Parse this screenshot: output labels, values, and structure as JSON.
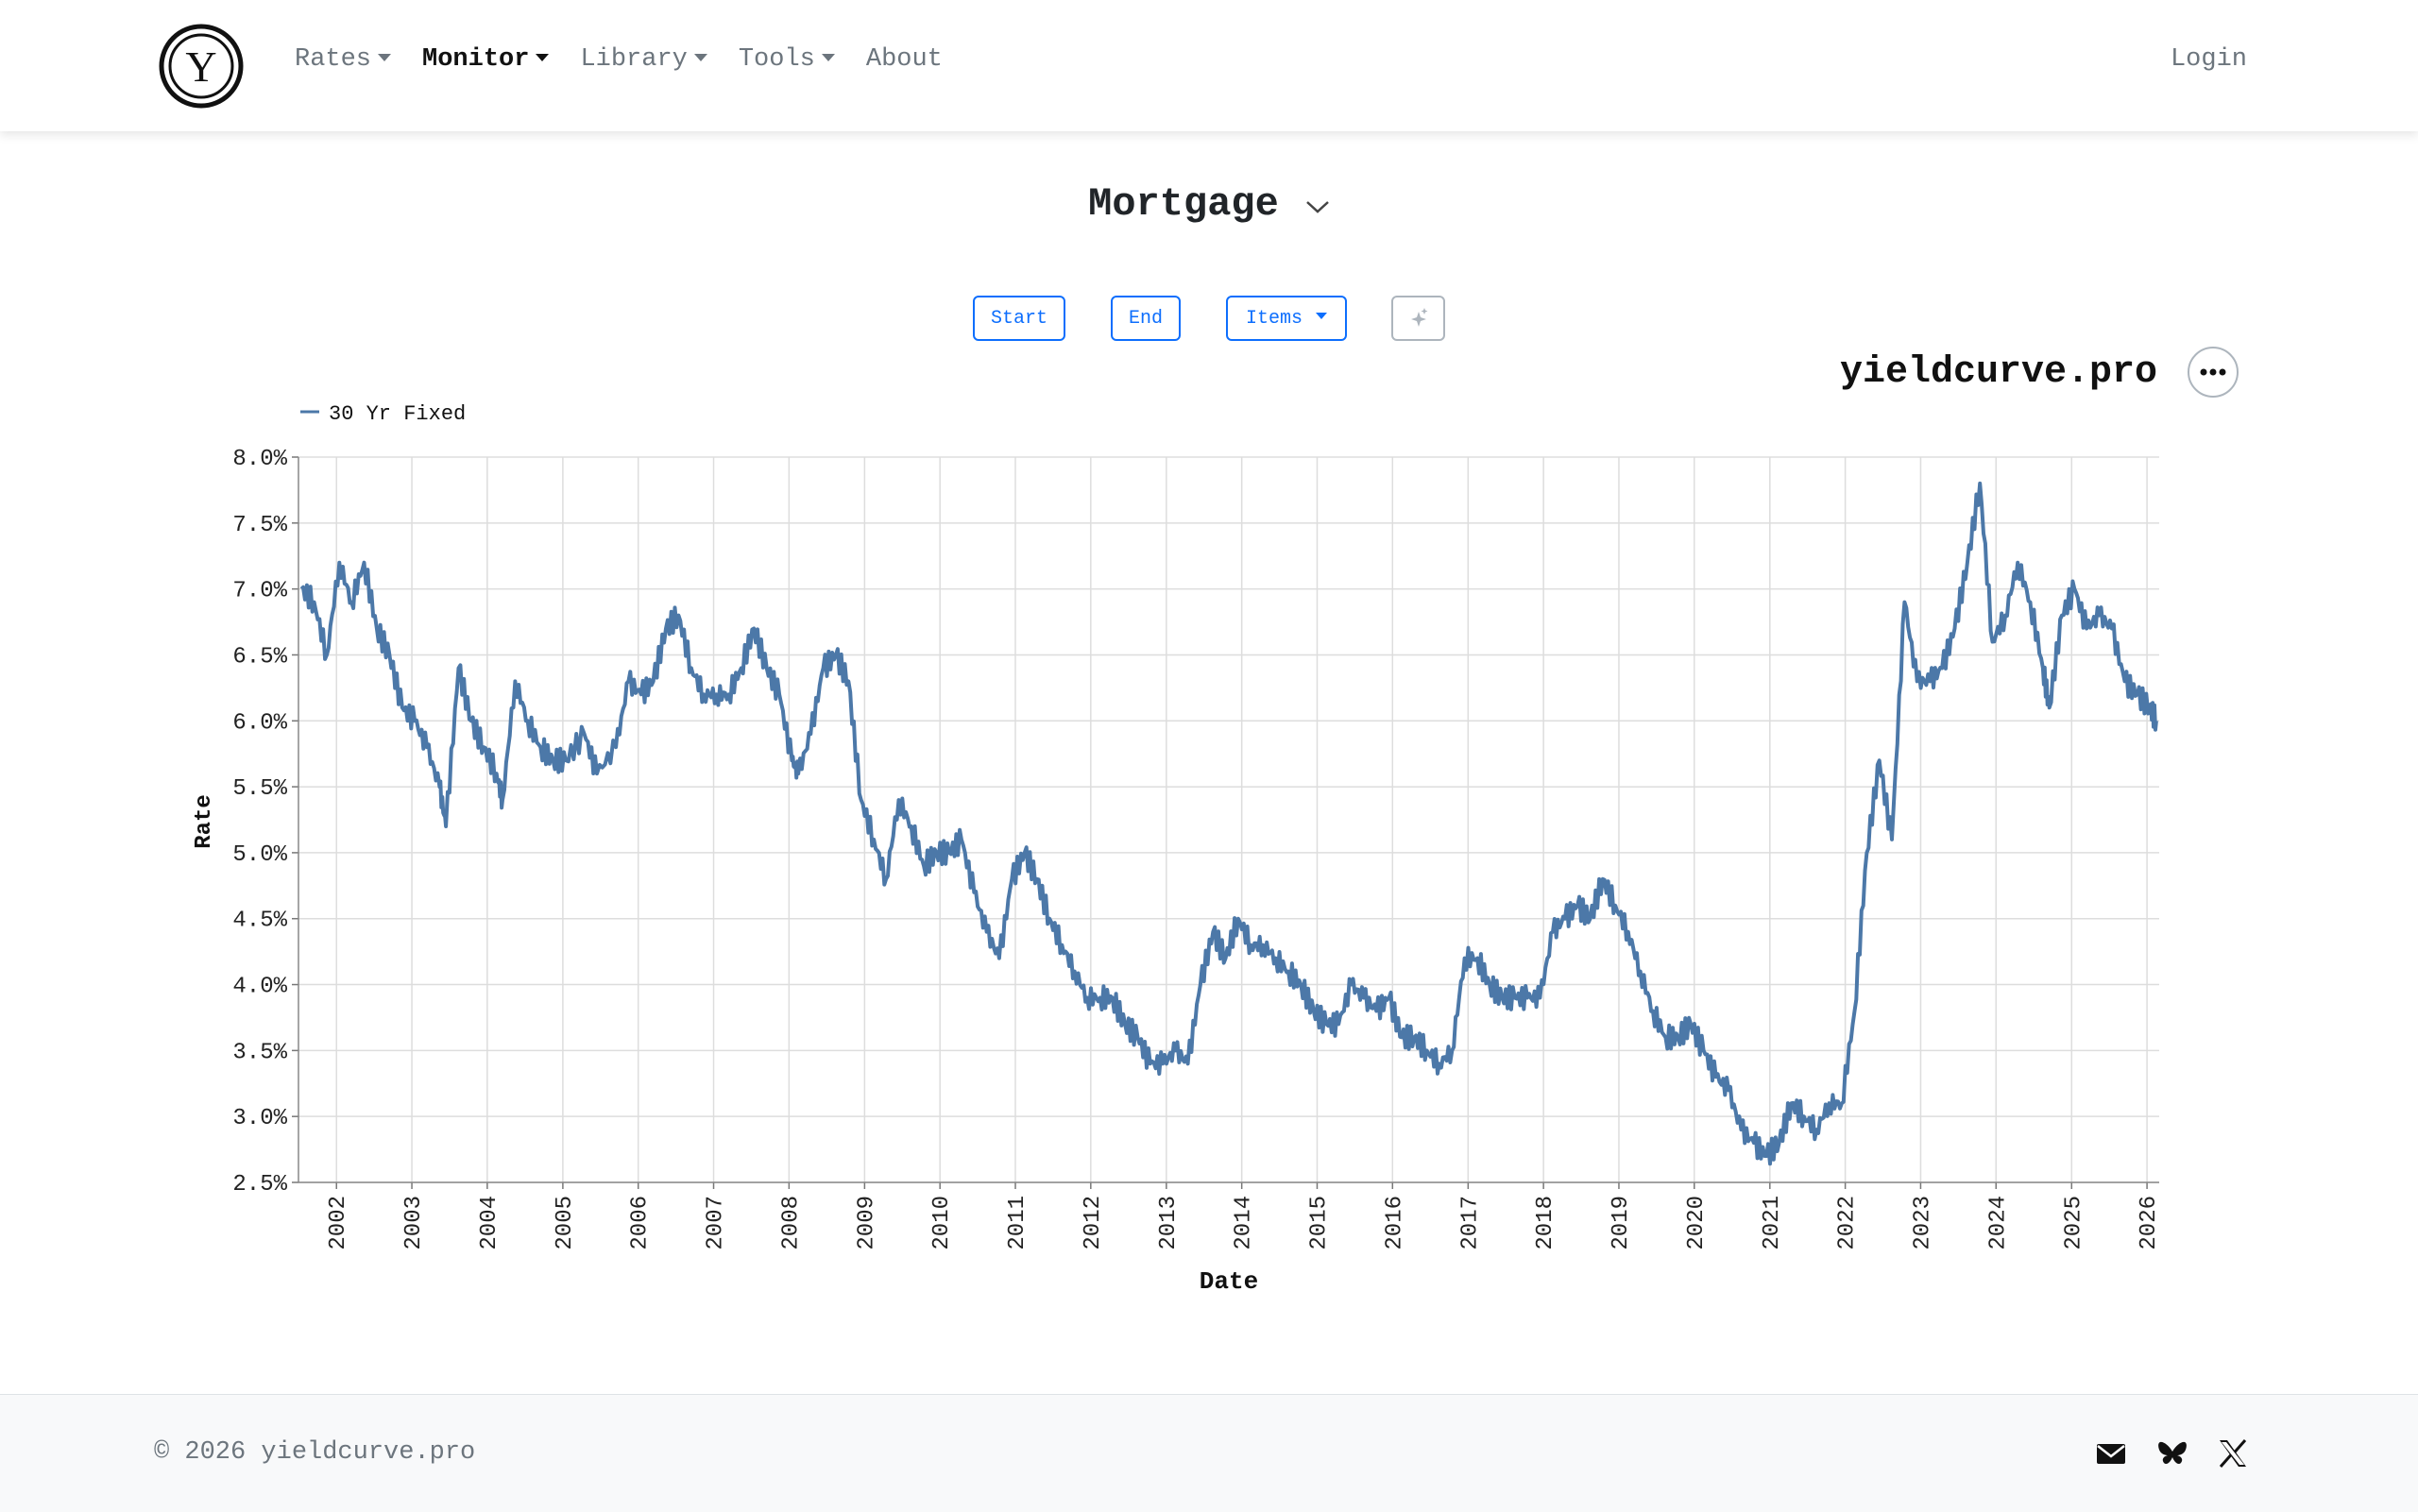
{
  "nav": {
    "items": [
      {
        "label": "Rates",
        "dropdown": true,
        "active": false
      },
      {
        "label": "Monitor",
        "dropdown": true,
        "active": true
      },
      {
        "label": "Library",
        "dropdown": true,
        "active": false
      },
      {
        "label": "Tools",
        "dropdown": true,
        "active": false
      },
      {
        "label": "About",
        "dropdown": false,
        "active": false
      }
    ],
    "login_label": "Login",
    "logo_letter": "Y"
  },
  "page": {
    "title": "Mortgage"
  },
  "controls": {
    "start_label": "Start",
    "end_label": "End",
    "items_label": "Items"
  },
  "brand": "yieldcurve.pro",
  "footer": {
    "copyright": "© 2026 yieldcurve.pro",
    "icons": [
      "envelope-icon",
      "bluesky-icon",
      "x-icon"
    ]
  },
  "colors": {
    "series": "#4c78a8",
    "accent": "#0d6efd",
    "grid": "#dddddd"
  },
  "chart_data": {
    "type": "line",
    "title": "",
    "xlabel": "Date",
    "ylabel": "Rate",
    "xlim": [
      "2001-07-01",
      "2026-03-01"
    ],
    "ylim": [
      2.5,
      8.0
    ],
    "ytick_step": 0.5,
    "ytick_format": "0.0%",
    "xticks": [
      "2002",
      "2003",
      "2004",
      "2005",
      "2006",
      "2007",
      "2008",
      "2009",
      "2010",
      "2011",
      "2012",
      "2013",
      "2014",
      "2015",
      "2016",
      "2017",
      "2018",
      "2019",
      "2020",
      "2021",
      "2022",
      "2023",
      "2024",
      "2025",
      "2026"
    ],
    "grid": true,
    "legend_position": "top-left",
    "series": [
      {
        "name": "30 Yr Fixed",
        "points": [
          [
            "2001-07",
            7.0
          ],
          [
            "2001-09",
            6.9
          ],
          [
            "2001-11",
            6.5
          ],
          [
            "2002-01",
            7.2
          ],
          [
            "2002-03",
            6.9
          ],
          [
            "2002-05",
            7.2
          ],
          [
            "2002-07",
            6.7
          ],
          [
            "2002-09",
            6.5
          ],
          [
            "2002-11",
            6.1
          ],
          [
            "2003-01",
            6.0
          ],
          [
            "2003-03",
            5.8
          ],
          [
            "2003-05",
            5.5
          ],
          [
            "2003-06",
            5.2
          ],
          [
            "2003-08",
            6.4
          ],
          [
            "2003-10",
            6.0
          ],
          [
            "2003-12",
            5.8
          ],
          [
            "2004-02",
            5.6
          ],
          [
            "2004-03",
            5.4
          ],
          [
            "2004-05",
            6.3
          ],
          [
            "2004-07",
            6.0
          ],
          [
            "2004-09",
            5.8
          ],
          [
            "2004-11",
            5.7
          ],
          [
            "2005-01",
            5.7
          ],
          [
            "2005-04",
            5.9
          ],
          [
            "2005-06",
            5.6
          ],
          [
            "2005-09",
            5.8
          ],
          [
            "2005-11",
            6.3
          ],
          [
            "2006-01",
            6.2
          ],
          [
            "2006-03",
            6.3
          ],
          [
            "2006-05",
            6.7
          ],
          [
            "2006-07",
            6.8
          ],
          [
            "2006-09",
            6.4
          ],
          [
            "2006-11",
            6.2
          ],
          [
            "2007-01",
            6.2
          ],
          [
            "2007-03",
            6.2
          ],
          [
            "2007-05",
            6.4
          ],
          [
            "2007-07",
            6.7
          ],
          [
            "2007-09",
            6.4
          ],
          [
            "2007-11",
            6.2
          ],
          [
            "2008-01",
            5.7
          ],
          [
            "2008-02",
            5.6
          ],
          [
            "2008-04",
            5.9
          ],
          [
            "2008-06",
            6.4
          ],
          [
            "2008-08",
            6.5
          ],
          [
            "2008-10",
            6.3
          ],
          [
            "2008-12",
            5.4
          ],
          [
            "2009-02",
            5.1
          ],
          [
            "2009-04",
            4.8
          ],
          [
            "2009-06",
            5.4
          ],
          [
            "2009-08",
            5.2
          ],
          [
            "2009-10",
            4.9
          ],
          [
            "2009-12",
            5.0
          ],
          [
            "2010-02",
            5.0
          ],
          [
            "2010-04",
            5.1
          ],
          [
            "2010-06",
            4.7
          ],
          [
            "2010-08",
            4.4
          ],
          [
            "2010-10",
            4.2
          ],
          [
            "2010-12",
            4.8
          ],
          [
            "2011-02",
            5.0
          ],
          [
            "2011-04",
            4.8
          ],
          [
            "2011-06",
            4.5
          ],
          [
            "2011-08",
            4.3
          ],
          [
            "2011-10",
            4.1
          ],
          [
            "2011-12",
            3.9
          ],
          [
            "2012-02",
            3.9
          ],
          [
            "2012-04",
            3.9
          ],
          [
            "2012-06",
            3.7
          ],
          [
            "2012-08",
            3.6
          ],
          [
            "2012-10",
            3.4
          ],
          [
            "2012-12",
            3.4
          ],
          [
            "2013-02",
            3.5
          ],
          [
            "2013-04",
            3.4
          ],
          [
            "2013-06",
            4.0
          ],
          [
            "2013-08",
            4.4
          ],
          [
            "2013-10",
            4.2
          ],
          [
            "2013-12",
            4.5
          ],
          [
            "2014-02",
            4.3
          ],
          [
            "2014-04",
            4.3
          ],
          [
            "2014-06",
            4.2
          ],
          [
            "2014-08",
            4.1
          ],
          [
            "2014-10",
            4.0
          ],
          [
            "2014-12",
            3.8
          ],
          [
            "2015-02",
            3.7
          ],
          [
            "2015-04",
            3.7
          ],
          [
            "2015-06",
            4.0
          ],
          [
            "2015-08",
            3.9
          ],
          [
            "2015-10",
            3.8
          ],
          [
            "2015-12",
            3.9
          ],
          [
            "2016-02",
            3.6
          ],
          [
            "2016-04",
            3.6
          ],
          [
            "2016-06",
            3.5
          ],
          [
            "2016-08",
            3.4
          ],
          [
            "2016-10",
            3.5
          ],
          [
            "2016-12",
            4.2
          ],
          [
            "2017-02",
            4.2
          ],
          [
            "2017-04",
            4.0
          ],
          [
            "2017-06",
            3.9
          ],
          [
            "2017-08",
            3.9
          ],
          [
            "2017-10",
            3.9
          ],
          [
            "2017-12",
            3.9
          ],
          [
            "2018-02",
            4.4
          ],
          [
            "2018-04",
            4.5
          ],
          [
            "2018-06",
            4.6
          ],
          [
            "2018-08",
            4.5
          ],
          [
            "2018-10",
            4.8
          ],
          [
            "2018-12",
            4.6
          ],
          [
            "2019-02",
            4.4
          ],
          [
            "2019-04",
            4.1
          ],
          [
            "2019-06",
            3.8
          ],
          [
            "2019-08",
            3.6
          ],
          [
            "2019-10",
            3.6
          ],
          [
            "2019-12",
            3.7
          ],
          [
            "2020-02",
            3.5
          ],
          [
            "2020-04",
            3.3
          ],
          [
            "2020-06",
            3.2
          ],
          [
            "2020-08",
            2.9
          ],
          [
            "2020-10",
            2.8
          ],
          [
            "2020-12",
            2.7
          ],
          [
            "2021-02",
            2.8
          ],
          [
            "2021-04",
            3.1
          ],
          [
            "2021-06",
            3.0
          ],
          [
            "2021-08",
            2.9
          ],
          [
            "2021-10",
            3.1
          ],
          [
            "2021-12",
            3.1
          ],
          [
            "2022-02",
            3.8
          ],
          [
            "2022-04",
            5.0
          ],
          [
            "2022-06",
            5.7
          ],
          [
            "2022-08",
            5.1
          ],
          [
            "2022-10",
            6.9
          ],
          [
            "2022-12",
            6.3
          ],
          [
            "2023-02",
            6.3
          ],
          [
            "2023-04",
            6.4
          ],
          [
            "2023-06",
            6.7
          ],
          [
            "2023-08",
            7.2
          ],
          [
            "2023-10",
            7.8
          ],
          [
            "2023-12",
            6.6
          ],
          [
            "2024-02",
            6.8
          ],
          [
            "2024-04",
            7.2
          ],
          [
            "2024-06",
            6.9
          ],
          [
            "2024-08",
            6.4
          ],
          [
            "2024-09",
            6.1
          ],
          [
            "2024-11",
            6.8
          ],
          [
            "2025-01",
            7.0
          ],
          [
            "2025-03",
            6.7
          ],
          [
            "2025-05",
            6.8
          ],
          [
            "2025-07",
            6.7
          ],
          [
            "2025-09",
            6.3
          ],
          [
            "2025-11",
            6.2
          ],
          [
            "2026-01",
            6.1
          ],
          [
            "2026-02",
            6.0
          ]
        ]
      }
    ]
  }
}
